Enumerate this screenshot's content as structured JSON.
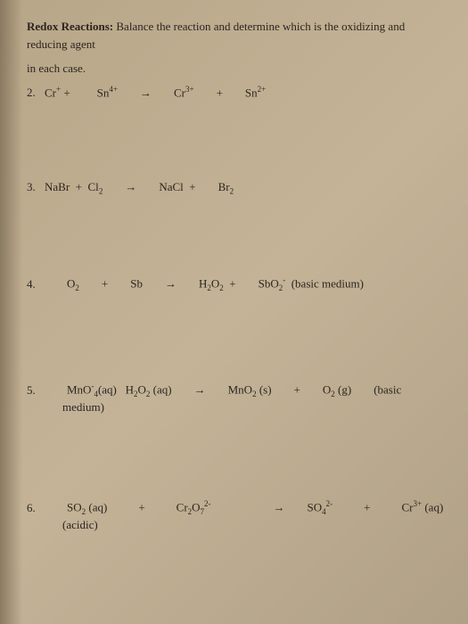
{
  "title_bold": "Redox Reactions:",
  "title_rest": " Balance the reaction and determine which is the oxidizing and reducing agent",
  "in_each_case": "in each case.",
  "problems": {
    "p2": {
      "num": "2.",
      "r1": "Cr",
      "r1_sup": "+",
      "plus1": "+",
      "r2": "Sn",
      "r2_sup": "4+",
      "arrow": "→",
      "p1": "Cr",
      "p1_sup": "3+",
      "plus2": "+",
      "p2": "Sn",
      "p2_sup": "2+"
    },
    "p3": {
      "num": "3.",
      "r1": "NaBr",
      "plus1": "+",
      "r2": "Cl",
      "r2_sub": "2",
      "arrow": "→",
      "p1": "NaCl",
      "plus2": "+",
      "p2": "Br",
      "p2_sub": "2"
    },
    "p4": {
      "num": "4.",
      "r1": "O",
      "r1_sub": "2",
      "plus1": "+",
      "r2": "Sb",
      "arrow": "→",
      "p1": "H",
      "p1_sub": "2",
      "p1b": "O",
      "p1b_sub": "2",
      "plus2": "+",
      "p2": "SbO",
      "p2_sub": "2",
      "p2_sup": "-",
      "medium": "(basic medium)"
    },
    "p5": {
      "num": "5.",
      "r1": "MnO",
      "r1_sup": "-",
      "r1_sub": "4",
      "r1_state": "(aq)",
      "r2": "H",
      "r2_sub": "2",
      "r2b": "O",
      "r2b_sub": "2",
      "r2_state": "(aq)",
      "arrow": "→",
      "p1": "MnO",
      "p1_sub": "2",
      "p1_state": "(s)",
      "plus2": "+",
      "p2": "O",
      "p2_sub": "2",
      "p2_state": "(g)",
      "medium1": "(basic",
      "medium2": "medium)"
    },
    "p6": {
      "num": "6.",
      "r1": "SO",
      "r1_sub": "2",
      "r1_state": "(aq)",
      "plus1": "+",
      "r2": "Cr",
      "r2_sub": "2",
      "r2b": "O",
      "r2b_sub": "7",
      "r2_sup": "2-",
      "arrow": "→",
      "p1": "SO",
      "p1_sub": "4",
      "p1_sup": "2-",
      "plus2": "+",
      "p2": "Cr",
      "p2_sup": "3+",
      "p2_state": "(aq)",
      "medium": "(acidic)"
    }
  }
}
